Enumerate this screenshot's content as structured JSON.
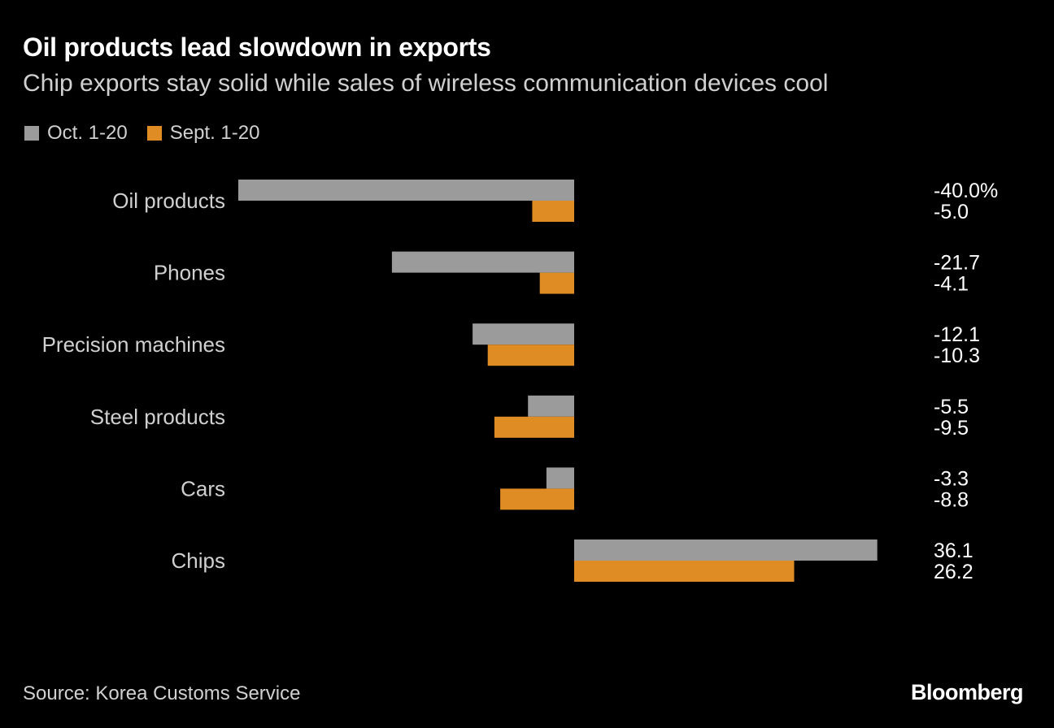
{
  "colors": {
    "series_1": "#9b9b9b",
    "series_2": "#e08c24",
    "background": "#000000"
  },
  "chart_data": {
    "type": "bar",
    "orientation": "horizontal",
    "title": "Oil products lead slowdown in exports",
    "subtitle": "Chip exports stay solid while sales of wireless communication devices cool",
    "categories": [
      "Oil products",
      "Phones",
      "Precision machines",
      "Steel products",
      "Cars",
      "Chips"
    ],
    "series": [
      {
        "name": "Oct. 1-20",
        "values": [
          -40.0,
          -21.7,
          -12.1,
          -5.5,
          -3.3,
          36.1
        ],
        "labels": [
          "-40.0%",
          "-21.7",
          "-12.1",
          "-5.5",
          "-3.3",
          "36.1"
        ]
      },
      {
        "name": "Sept. 1-20",
        "values": [
          -5.0,
          -4.1,
          -10.3,
          -9.5,
          -8.8,
          26.2
        ],
        "labels": [
          "-5.0",
          "-4.1",
          "-10.3",
          "-9.5",
          "-8.8",
          "26.2"
        ]
      }
    ],
    "xlim": [
      -40,
      36.1
    ],
    "unit": "%",
    "legend_position": "top-left",
    "grid": false,
    "source": "Source: Korea Customs Service"
  },
  "brand": "Bloomberg"
}
